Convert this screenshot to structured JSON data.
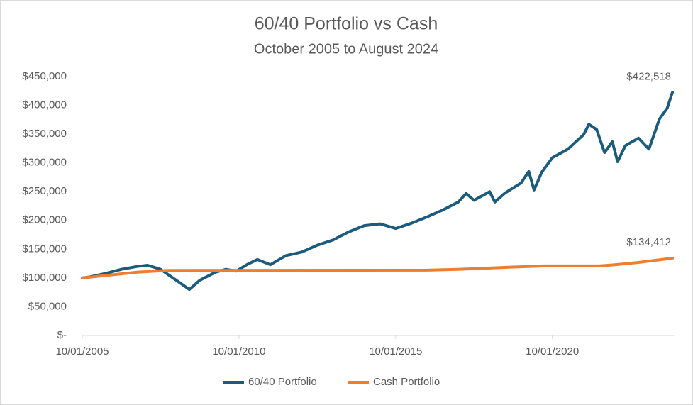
{
  "chart_data": {
    "type": "line",
    "title": "60/40 Portfolio vs Cash",
    "subtitle": "October 2005 to August 2024",
    "xlim": [
      "10/01/2005",
      "08/01/2024"
    ],
    "xticks": [
      "10/01/2005",
      "10/01/2010",
      "10/01/2015",
      "10/01/2020"
    ],
    "ylim": [
      0,
      450000
    ],
    "yticks": [
      {
        "value": 0,
        "label": "$-"
      },
      {
        "value": 50000,
        "label": "$50,000"
      },
      {
        "value": 100000,
        "label": "$100,000"
      },
      {
        "value": 150000,
        "label": "$150,000"
      },
      {
        "value": 200000,
        "label": "$200,000"
      },
      {
        "value": 250000,
        "label": "$250,000"
      },
      {
        "value": 300000,
        "label": "$300,000"
      },
      {
        "value": 350000,
        "label": "$350,000"
      },
      {
        "value": 400000,
        "label": "$400,000"
      },
      {
        "value": 450000,
        "label": "$450,000"
      }
    ],
    "grid": false,
    "legend": "bottom",
    "series": [
      {
        "name": "60/40 Portfolio",
        "color": "#1b5c7e",
        "end_label": "$422,518",
        "x": [
          "10/01/2005",
          "01/01/2006",
          "07/01/2006",
          "01/01/2007",
          "07/01/2007",
          "11/01/2007",
          "04/01/2008",
          "10/01/2008",
          "03/01/2009",
          "07/01/2009",
          "01/01/2010",
          "05/01/2010",
          "09/01/2010",
          "01/01/2011",
          "05/01/2011",
          "10/01/2011",
          "04/01/2012",
          "10/01/2012",
          "04/01/2013",
          "10/01/2013",
          "04/01/2014",
          "10/01/2014",
          "04/01/2015",
          "10/01/2015",
          "04/01/2016",
          "10/01/2016",
          "04/01/2017",
          "10/01/2017",
          "01/01/2018",
          "04/01/2018",
          "10/01/2018",
          "12/01/2018",
          "04/01/2019",
          "10/01/2019",
          "01/01/2020",
          "03/01/2020",
          "06/01/2020",
          "10/01/2020",
          "04/01/2021",
          "10/01/2021",
          "12/01/2021",
          "03/01/2022",
          "06/01/2022",
          "09/01/2022",
          "11/01/2022",
          "02/01/2023",
          "07/01/2023",
          "11/01/2023",
          "03/01/2024",
          "06/01/2024",
          "08/01/2024"
        ],
        "values": [
          100000,
          102000,
          108000,
          115000,
          120000,
          122000,
          115000,
          96000,
          80000,
          96000,
          110000,
          115000,
          112000,
          123000,
          132000,
          123000,
          139000,
          145000,
          157000,
          166000,
          180000,
          191000,
          194000,
          186000,
          195000,
          206000,
          218000,
          232000,
          247000,
          235000,
          250000,
          232000,
          248000,
          265000,
          285000,
          253000,
          284000,
          309000,
          324000,
          349000,
          367000,
          358000,
          318000,
          337000,
          302000,
          330000,
          343000,
          324000,
          376000,
          395000,
          422518
        ]
      },
      {
        "name": "Cash Portfolio",
        "color": "#ed7d31",
        "end_label": "$134,412",
        "x": [
          "10/01/2005",
          "07/01/2007",
          "07/01/2008",
          "10/01/2016",
          "10/01/2017",
          "07/01/2019",
          "07/01/2020",
          "04/01/2022",
          "10/01/2022",
          "07/01/2023",
          "08/01/2024"
        ],
        "values": [
          100000,
          110000,
          113000,
          113500,
          115000,
          119000,
          121000,
          121000,
          123000,
          127000,
          134412
        ]
      }
    ]
  }
}
